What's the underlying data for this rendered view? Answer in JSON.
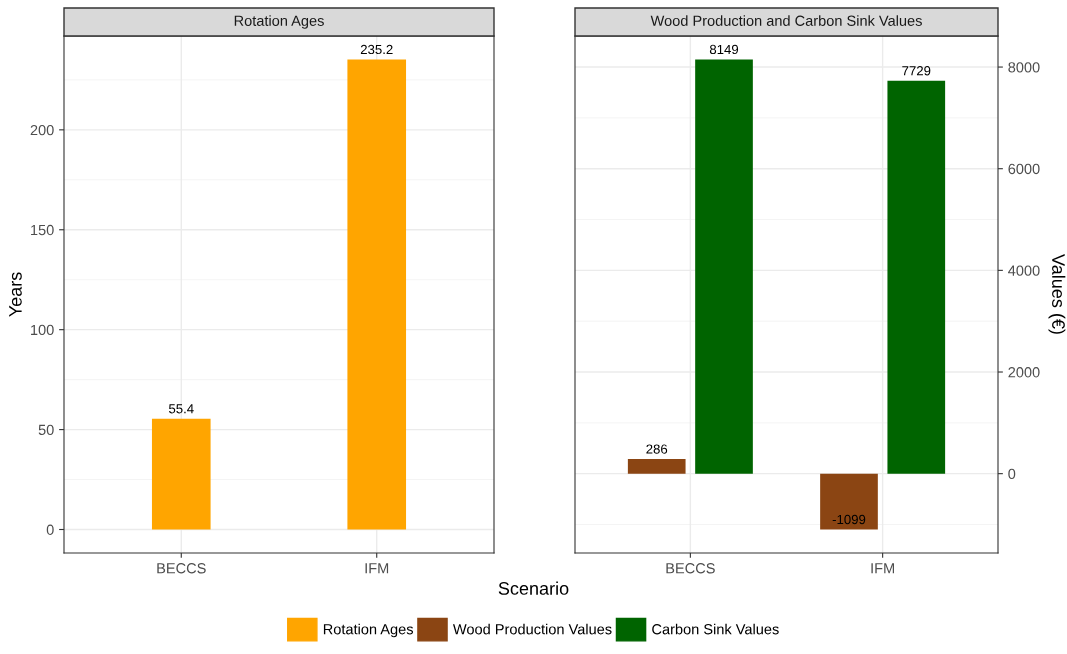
{
  "chart_data": [
    {
      "type": "bar",
      "title": "Rotation Ages",
      "xlabel": "Scenario",
      "ylabel": "Years",
      "categories": [
        "BECCS",
        "IFM"
      ],
      "series": [
        {
          "name": "Rotation Ages",
          "color": "#ffa500",
          "values": [
            55.4,
            235.2
          ]
        }
      ],
      "ylim": [
        -11.76,
        246.96
      ],
      "yticks": [
        0,
        50,
        100,
        150,
        200
      ],
      "grid": true,
      "data_labels": true,
      "legend": "bottom"
    },
    {
      "type": "bar",
      "title": "Wood Production and Carbon Sink Values",
      "y2label": "Values (€)",
      "categories": [
        "BECCS",
        "IFM"
      ],
      "series": [
        {
          "name": "Wood Production Values",
          "color": "#8b4513",
          "values": [
            286,
            -1099
          ],
          "axis": "y2"
        },
        {
          "name": "Carbon Sink Values",
          "color": "#006400",
          "values": [
            8149,
            7729
          ],
          "axis": "y2"
        }
      ],
      "y2lim": [
        -1561,
        8611
      ],
      "y2ticks": [
        0,
        2000,
        4000,
        6000,
        8000
      ],
      "grid": true,
      "data_labels": true,
      "legend": "bottom"
    }
  ]
}
